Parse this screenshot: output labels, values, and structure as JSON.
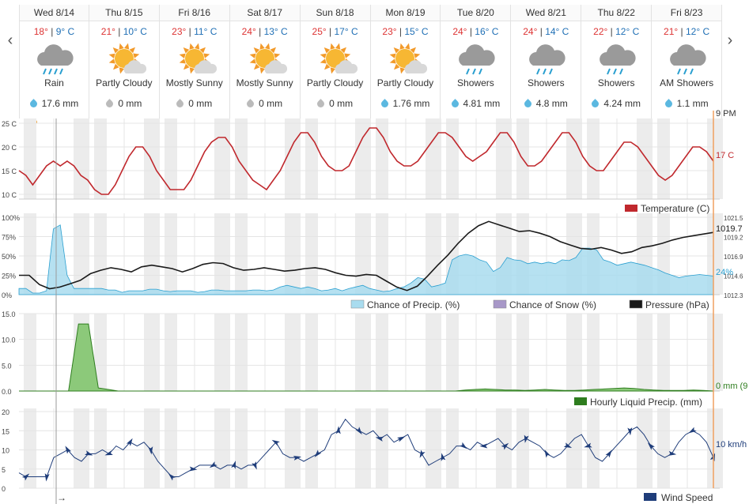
{
  "nav": {
    "prev": "‹",
    "next": "›"
  },
  "days": [
    {
      "date": "Wed 8/14",
      "hi": "18°",
      "lo": "9° C",
      "cond": "Rain",
      "precip": "17.6 mm",
      "icon": "rain-icon",
      "wet": true
    },
    {
      "date": "Thu 8/15",
      "hi": "21°",
      "lo": "10° C",
      "cond": "Partly Cloudy",
      "precip": "0 mm",
      "icon": "sun-icon",
      "wet": false
    },
    {
      "date": "Fri 8/16",
      "hi": "23°",
      "lo": "11° C",
      "cond": "Mostly Sunny",
      "precip": "0 mm",
      "icon": "sun-icon",
      "wet": false
    },
    {
      "date": "Sat 8/17",
      "hi": "24°",
      "lo": "13° C",
      "cond": "Mostly Sunny",
      "precip": "0 mm",
      "icon": "sun-icon",
      "wet": false
    },
    {
      "date": "Sun 8/18",
      "hi": "25°",
      "lo": "17° C",
      "cond": "Partly Cloudy",
      "precip": "0 mm",
      "icon": "sun-icon",
      "wet": false
    },
    {
      "date": "Mon 8/19",
      "hi": "23°",
      "lo": "15° C",
      "cond": "Partly Cloudy",
      "precip": "1.76 mm",
      "icon": "sun-icon",
      "wet": true
    },
    {
      "date": "Tue 8/20",
      "hi": "24°",
      "lo": "16° C",
      "cond": "Showers",
      "precip": "4.81 mm",
      "icon": "showers-icon",
      "wet": true
    },
    {
      "date": "Wed 8/21",
      "hi": "24°",
      "lo": "14° C",
      "cond": "Showers",
      "precip": "4.8 mm",
      "icon": "showers-icon",
      "wet": true
    },
    {
      "date": "Thu 8/22",
      "hi": "22°",
      "lo": "12° C",
      "cond": "Showers",
      "precip": "4.24 mm",
      "icon": "showers-icon",
      "wet": true
    },
    {
      "date": "Fri 8/23",
      "hi": "21°",
      "lo": "12° C",
      "cond": "AM Showers",
      "precip": "1.1 mm",
      "icon": "showers-icon",
      "wet": true
    }
  ],
  "colors": {
    "temp": "#c0282d",
    "precip_fill": "#a9dcef",
    "precip_line": "#2a9fd0",
    "pressure": "#1a1a1a",
    "snow": "#a898c8",
    "liquid": "#2e7d1e",
    "wind": "#1f3d7a",
    "now_line": "#f0a060"
  },
  "chart_data": [
    {
      "type": "line",
      "yticks": [
        "25 C",
        "20 C",
        "15 C",
        "10 C"
      ],
      "ylim": [
        9,
        26
      ],
      "x_hours": 240,
      "legend": "Temperature (C)",
      "current_label": "9 PM",
      "end_label": "17 C",
      "series": [
        {
          "name": "Temperature (C)",
          "values": [
            15,
            14,
            12,
            14,
            16,
            17,
            16,
            17,
            16,
            14,
            13,
            11,
            10,
            10,
            12,
            15,
            18,
            20,
            20,
            18,
            15,
            13,
            11,
            11,
            11,
            13,
            16,
            19,
            21,
            22,
            22,
            20,
            17,
            15,
            13,
            12,
            11,
            13,
            15,
            18,
            21,
            23,
            23,
            21,
            18,
            16,
            15,
            15,
            16,
            19,
            22,
            24,
            24,
            22,
            19,
            17,
            16,
            16,
            17,
            19,
            21,
            23,
            23,
            22,
            20,
            18,
            17,
            18,
            19,
            21,
            23,
            23,
            21,
            18,
            16,
            16,
            17,
            19,
            21,
            23,
            23,
            21,
            18,
            16,
            15,
            15,
            17,
            19,
            21,
            21,
            20,
            18,
            16,
            14,
            13,
            14,
            16,
            18,
            20,
            20,
            19,
            17
          ]
        }
      ]
    },
    {
      "type": "area",
      "yticks": [
        "100%",
        "75%",
        "50%",
        "25%",
        "0%"
      ],
      "ylim": [
        0,
        100
      ],
      "right_ticks": [
        "1021.5",
        "1019.2",
        "1016.9",
        "1014.6",
        "1012.3"
      ],
      "pressure_range": [
        1012.3,
        1021.5
      ],
      "end_precip_label": "24%",
      "end_pressure_label": "1019.7",
      "legend": [
        "Chance of Precip. (%)",
        "Chance of Snow (%)",
        "Pressure (hPa)"
      ],
      "series": [
        {
          "name": "Chance of Precip. (%)",
          "values": [
            8,
            8,
            2,
            2,
            5,
            85,
            90,
            25,
            8,
            8,
            8,
            8,
            8,
            6,
            6,
            3,
            5,
            5,
            5,
            7,
            7,
            5,
            4,
            5,
            5,
            5,
            3,
            4,
            6,
            6,
            5,
            5,
            5,
            5,
            6,
            6,
            5,
            6,
            10,
            12,
            10,
            8,
            10,
            8,
            5,
            6,
            8,
            5,
            8,
            10,
            12,
            8,
            6,
            4,
            5,
            8,
            10,
            15,
            22,
            20,
            10,
            12,
            15,
            45,
            50,
            52,
            50,
            45,
            42,
            30,
            35,
            48,
            45,
            44,
            40,
            42,
            40,
            42,
            40,
            45,
            44,
            48,
            60,
            60,
            58,
            45,
            42,
            38,
            40,
            42,
            40,
            38,
            35,
            32,
            28,
            25,
            22,
            24,
            25,
            26,
            25,
            24
          ]
        },
        {
          "name": "Pressure (hPa)",
          "values": [
            1014.6,
            1014.6,
            1013.5,
            1013.0,
            1013.2,
            1013.6,
            1014.0,
            1014.8,
            1015.2,
            1015.5,
            1015.3,
            1015.0,
            1015.6,
            1015.8,
            1015.6,
            1015.4,
            1015.0,
            1015.4,
            1015.9,
            1016.1,
            1016.0,
            1015.5,
            1015.2,
            1015.3,
            1015.5,
            1015.3,
            1015.1,
            1015.2,
            1015.4,
            1015.5,
            1015.3,
            1014.9,
            1014.6,
            1014.5,
            1014.7,
            1014.6,
            1013.9,
            1013.2,
            1012.8,
            1013.3,
            1014.5,
            1015.8,
            1017.0,
            1018.4,
            1019.6,
            1020.5,
            1021.0,
            1020.6,
            1020.2,
            1019.8,
            1019.9,
            1019.6,
            1019.2,
            1018.6,
            1018.2,
            1017.8,
            1017.7,
            1017.9,
            1017.6,
            1017.2,
            1017.4,
            1017.9,
            1018.1,
            1018.4,
            1018.8,
            1019.1,
            1019.3,
            1019.5,
            1019.7
          ]
        }
      ]
    },
    {
      "type": "line",
      "yticks": [
        "15.0",
        "10.0",
        "5.0",
        "0.0"
      ],
      "ylim": [
        0,
        15
      ],
      "legend": "Hourly Liquid Precip. (mm)",
      "end_label": "0 mm (9",
      "series": [
        {
          "name": "Hourly Liquid Precip. (mm)",
          "values": [
            0,
            0,
            0,
            0,
            0,
            0,
            13,
            13,
            0.6,
            0.3,
            0,
            0,
            0,
            0,
            0,
            0,
            0,
            0,
            0,
            0,
            0,
            0,
            0,
            0,
            0,
            0,
            0,
            0,
            0,
            0,
            0,
            0,
            0,
            0,
            0,
            0,
            0,
            0,
            0,
            0,
            0,
            0,
            0,
            0,
            0,
            0.2,
            0.3,
            0.4,
            0.3,
            0.2,
            0.2,
            0.1,
            0.2,
            0.3,
            0.2,
            0.1,
            0.1,
            0.2,
            0.3,
            0.4,
            0.5,
            0.6,
            0.5,
            0.3,
            0.2,
            0.1,
            0.1,
            0.1,
            0.2,
            0.1,
            0
          ]
        }
      ]
    },
    {
      "type": "line",
      "yticks": [
        "20",
        "15",
        "10",
        "5",
        "0"
      ],
      "ylim": [
        0,
        20
      ],
      "legend": "Wind Speed",
      "end_label": "10 km/h",
      "bottom_arrow": "→",
      "series": [
        {
          "name": "Wind Speed",
          "values": [
            4,
            3,
            3,
            3,
            3,
            8,
            9,
            10,
            8,
            7,
            9,
            9,
            10,
            9,
            11,
            10,
            12,
            11,
            12,
            10,
            7,
            5,
            3,
            3,
            4,
            5,
            6,
            6,
            6,
            5,
            6,
            6,
            5,
            6,
            6,
            8,
            10,
            12,
            9,
            8,
            8,
            7,
            8,
            9,
            10,
            14,
            15,
            18,
            16,
            15,
            14,
            15,
            13,
            14,
            12,
            13,
            14,
            10,
            9,
            6,
            7,
            8,
            9,
            11,
            11,
            10,
            12,
            11,
            12,
            13,
            11,
            10,
            12,
            13,
            12,
            11,
            9,
            8,
            9,
            11,
            13,
            14,
            11,
            8,
            7,
            9,
            11,
            13,
            15,
            16,
            14,
            11,
            9,
            8,
            9,
            12,
            14,
            15,
            14,
            12,
            8
          ]
        }
      ]
    }
  ]
}
